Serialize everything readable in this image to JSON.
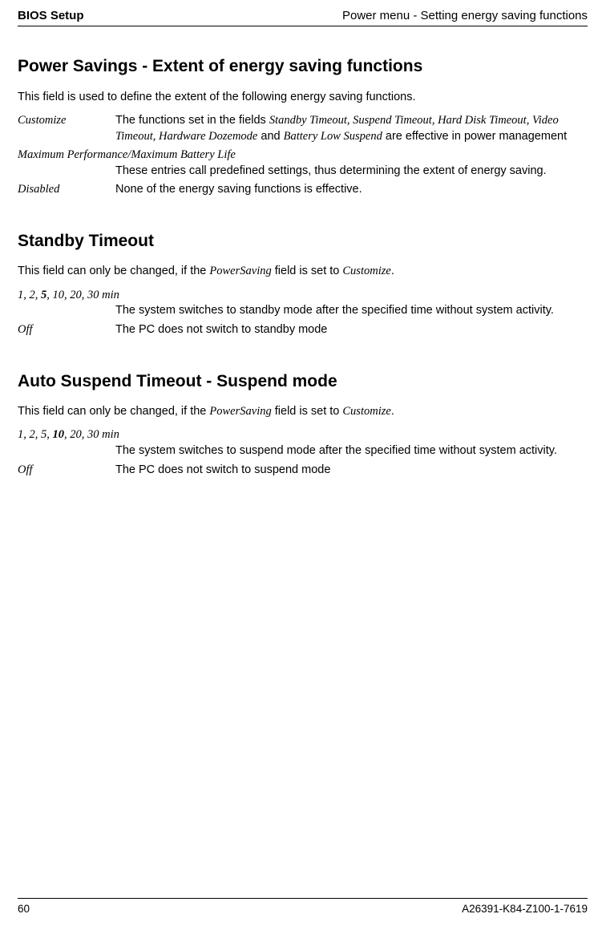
{
  "header": {
    "left": "BIOS Setup",
    "right": "Power menu - Setting energy saving functions"
  },
  "sections": [
    {
      "heading": "Power Savings - Extent of energy saving functions",
      "intro": "This field is used to define the extent of the following energy saving functions.",
      "items": [
        {
          "layout": "side",
          "term": "Customize",
          "desc_parts": [
            {
              "t": "plain",
              "v": "The functions set in the fields "
            },
            {
              "t": "italic",
              "v": "Standby Timeout, Suspend Timeout, Hard Disk Timeout, Video Timeout, Hardware Dozemode"
            },
            {
              "t": "plain",
              "v": " and "
            },
            {
              "t": "italic",
              "v": "Battery Low Suspend"
            },
            {
              "t": "plain",
              "v": " are effective in power management"
            }
          ]
        },
        {
          "layout": "vert",
          "term": "Maximum Performance/Maximum Battery Life",
          "desc_parts": [
            {
              "t": "plain",
              "v": "These entries call predefined settings, thus determining the extent of energy saving."
            }
          ]
        },
        {
          "layout": "side",
          "term": "Disabled",
          "desc_parts": [
            {
              "t": "plain",
              "v": "None of the energy saving functions is effective."
            }
          ]
        }
      ]
    },
    {
      "heading": "Standby Timeout",
      "intro_parts": [
        {
          "t": "plain",
          "v": "This field can only be changed, if the "
        },
        {
          "t": "italic",
          "v": "PowerSaving"
        },
        {
          "t": "plain",
          "v": " field is set to "
        },
        {
          "t": "italic",
          "v": "Customize"
        },
        {
          "t": "plain",
          "v": "."
        }
      ],
      "items": [
        {
          "layout": "vert",
          "term_parts": [
            {
              "t": "plain",
              "v": "1, 2, "
            },
            {
              "t": "bold",
              "v": "5"
            },
            {
              "t": "plain",
              "v": ", 10, 20, 30 min"
            }
          ],
          "desc_parts": [
            {
              "t": "plain",
              "v": "The system switches to standby mode after the specified time without system activity."
            }
          ]
        },
        {
          "layout": "side",
          "term": "Off",
          "desc_parts": [
            {
              "t": "plain",
              "v": "The PC does not switch to standby mode"
            }
          ]
        }
      ]
    },
    {
      "heading": "Auto Suspend Timeout - Suspend mode",
      "intro_parts": [
        {
          "t": "plain",
          "v": "This field can only be changed, if the "
        },
        {
          "t": "italic",
          "v": "PowerSaving"
        },
        {
          "t": "plain",
          "v": " field is set to "
        },
        {
          "t": "italic",
          "v": "Customize"
        },
        {
          "t": "plain",
          "v": "."
        }
      ],
      "items": [
        {
          "layout": "vert",
          "term_parts": [
            {
              "t": "plain",
              "v": "1, 2, 5, "
            },
            {
              "t": "bold",
              "v": "10"
            },
            {
              "t": "plain",
              "v": ", 20, 30 min"
            }
          ],
          "desc_parts": [
            {
              "t": "plain",
              "v": "The system switches to suspend mode after the specified time without system activity."
            }
          ]
        },
        {
          "layout": "side",
          "term": "Off",
          "desc_parts": [
            {
              "t": "plain",
              "v": "The PC does not switch to suspend mode"
            }
          ]
        }
      ]
    }
  ],
  "footer": {
    "page": "60",
    "docid": "A26391-K84-Z100-1-7619"
  }
}
